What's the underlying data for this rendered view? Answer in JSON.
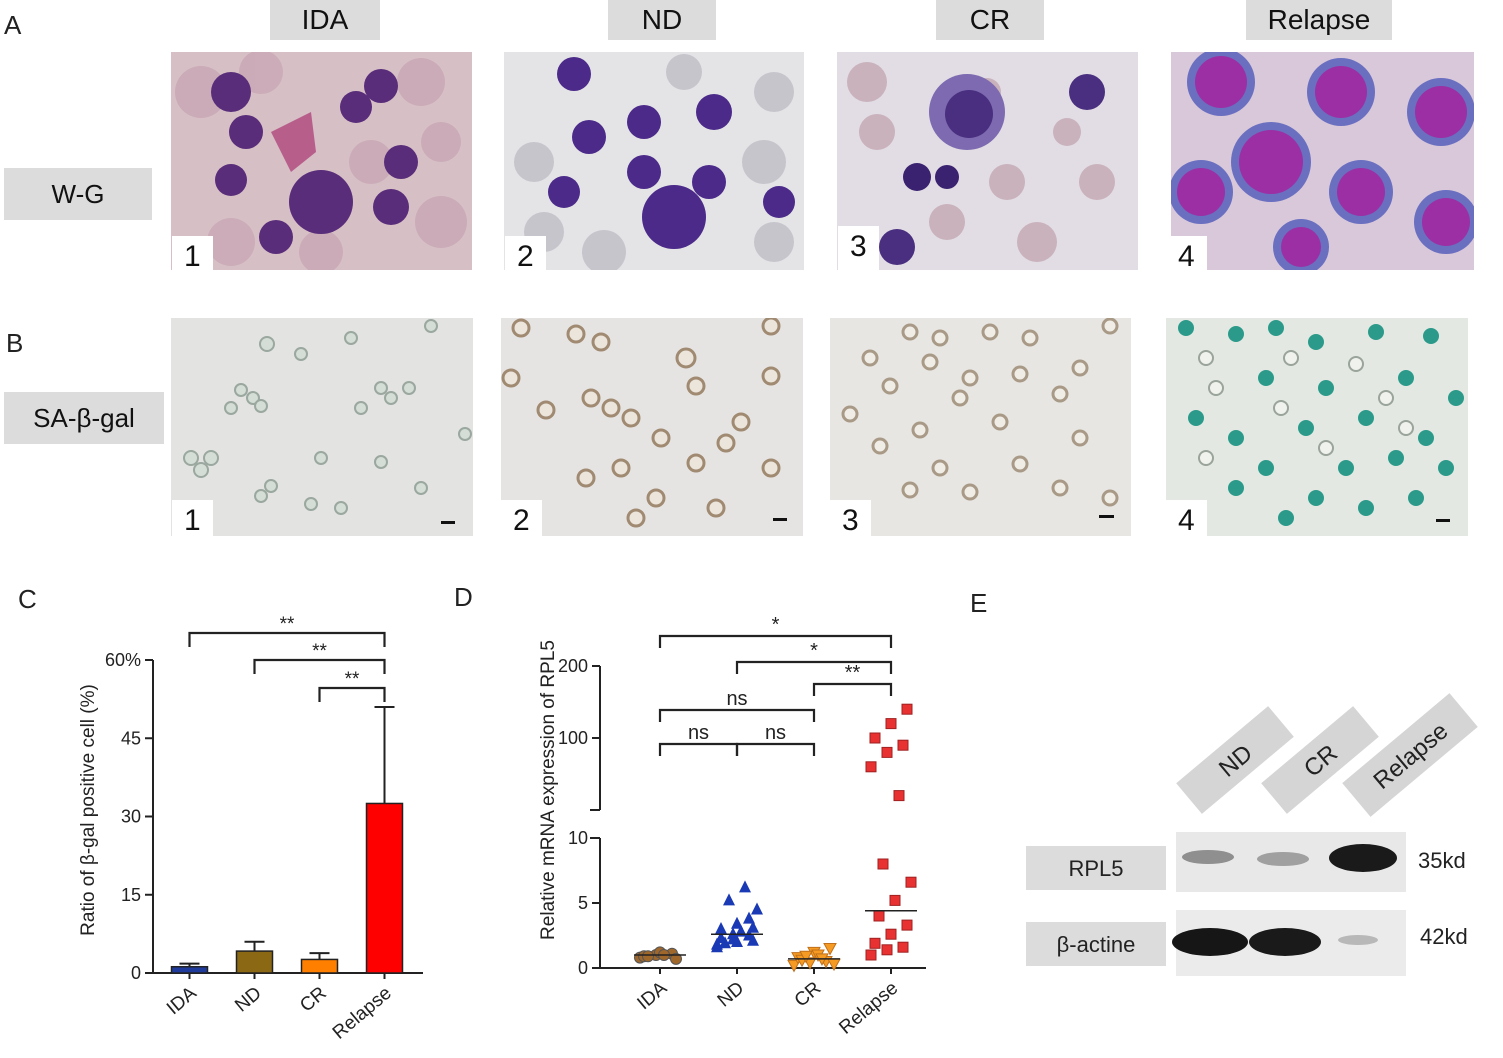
{
  "panels": {
    "a": "A",
    "b": "B",
    "c": "C",
    "d": "D",
    "e": "E"
  },
  "columns": [
    "IDA",
    "ND",
    "CR",
    "Relapse"
  ],
  "rows": {
    "wg": "W-G",
    "sa": "SA-β-gal"
  },
  "image_numbers": [
    "1",
    "2",
    "3",
    "4"
  ],
  "chart_data": [
    {
      "type": "bar",
      "ylabel": "Ratio of β-gal positive cell (%)",
      "categories": [
        "IDA",
        "ND",
        "CR",
        "Relapse"
      ],
      "values": [
        1.2,
        4.2,
        2.6,
        32.5
      ],
      "error_upper": [
        1.8,
        6.0,
        3.8,
        51.0
      ],
      "colors": [
        "#1f3c9c",
        "#8b6914",
        "#ff7f00",
        "#ff0000"
      ],
      "yticks": [
        "0",
        "15",
        "30",
        "45",
        "60%"
      ],
      "ylim": [
        0,
        60
      ],
      "significance": [
        {
          "from": "IDA",
          "to": "Relapse",
          "label": "**"
        },
        {
          "from": "ND",
          "to": "Relapse",
          "label": "**"
        },
        {
          "from": "CR",
          "to": "Relapse",
          "label": "**"
        }
      ]
    },
    {
      "type": "scatter",
      "ylabel": "Relative mRNA expression of RPL5",
      "categories": [
        "IDA",
        "ND",
        "CR",
        "Relapse"
      ],
      "yticks_lower": [
        "0",
        "5",
        "10"
      ],
      "yticks_upper": [
        "100",
        "200"
      ],
      "colors": [
        "#a0672b",
        "#1a3ab5",
        "#f59a23",
        "#e83232"
      ],
      "medians": [
        1.0,
        2.6,
        0.7,
        4.4
      ],
      "points": [
        [
          0.8,
          1.0,
          1.1,
          0.9,
          1.2,
          0.7,
          0.9,
          1.0
        ],
        [
          1.8,
          2.2,
          2.5,
          3.0,
          3.4,
          2.1,
          1.9,
          2.8,
          4.5,
          5.2,
          6.2,
          1.6,
          2.6,
          3.8,
          2.3,
          2.0,
          3.1
        ],
        [
          0.2,
          0.4,
          0.5,
          0.8,
          1.2,
          1.5,
          0.6,
          1.0,
          0.3,
          0.9,
          0.7
        ],
        [
          1.0,
          1.4,
          1.6,
          1.9,
          2.6,
          3.3,
          4.0,
          5.2,
          6.6,
          8.0,
          20,
          60,
          80,
          90,
          100,
          120,
          140
        ]
      ],
      "significance": [
        {
          "label": "*"
        },
        {
          "label": "*"
        },
        {
          "label": "**"
        },
        {
          "label": "ns"
        },
        {
          "label": "ns"
        },
        {
          "label": "ns"
        }
      ]
    }
  ],
  "blot": {
    "lanes": [
      "ND",
      "CR",
      "Relapse"
    ],
    "proteins": [
      "RPL5",
      "β-actine"
    ],
    "sizes": [
      "35kd",
      "42kd"
    ]
  }
}
